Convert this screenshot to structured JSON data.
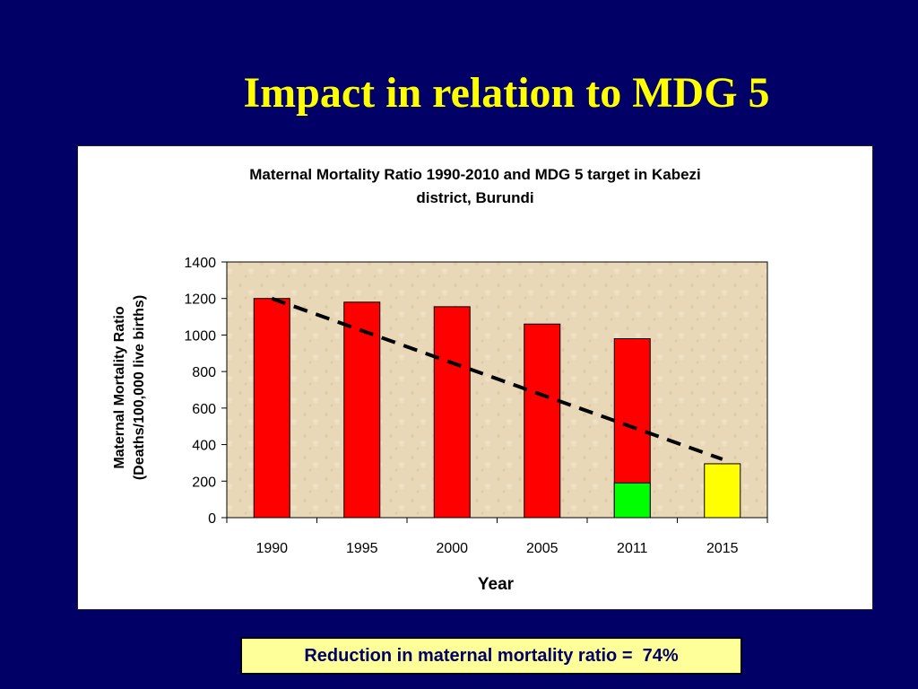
{
  "slide": {
    "title": "Impact in relation to MDG 5",
    "callout": "Reduction in maternal mortality ratio =  74%"
  },
  "colors": {
    "background": "#000066",
    "title": "#ffff00",
    "bar_red": "#ff0000",
    "bar_green": "#00ff00",
    "bar_yellow": "#ffff00",
    "plot_background": "#e8d8b8",
    "callout_background": "#ffff99"
  },
  "chart_data": {
    "type": "bar",
    "title_lines": [
      "Maternal Mortality Ratio 1990-2010 and MDG 5 target in Kabezi",
      "district, Burundi"
    ],
    "xlabel": "Year",
    "ylabel_lines": [
      "Maternal Mortality Ratio",
      "(Deaths/100,000 live births)"
    ],
    "categories": [
      "1990",
      "1995",
      "2000",
      "2005",
      "2011",
      "2015"
    ],
    "ylim": [
      0,
      1400
    ],
    "yticks": [
      0,
      200,
      400,
      600,
      800,
      1000,
      1200,
      1400
    ],
    "series": [
      {
        "values": [
          1200,
          1180,
          1155,
          1060,
          980,
          null
        ],
        "color": "#ff0000"
      },
      {
        "values": [
          null,
          null,
          null,
          null,
          190,
          null
        ],
        "color": "#00ff00"
      },
      {
        "values": [
          null,
          null,
          null,
          null,
          null,
          295
        ],
        "color": "#ffff00"
      }
    ],
    "trend_line": {
      "style": "dashed",
      "from": {
        "x": "1990",
        "y": 1200
      },
      "to": {
        "x": "2015",
        "y": 320
      }
    },
    "grid": false,
    "legend": "none"
  }
}
